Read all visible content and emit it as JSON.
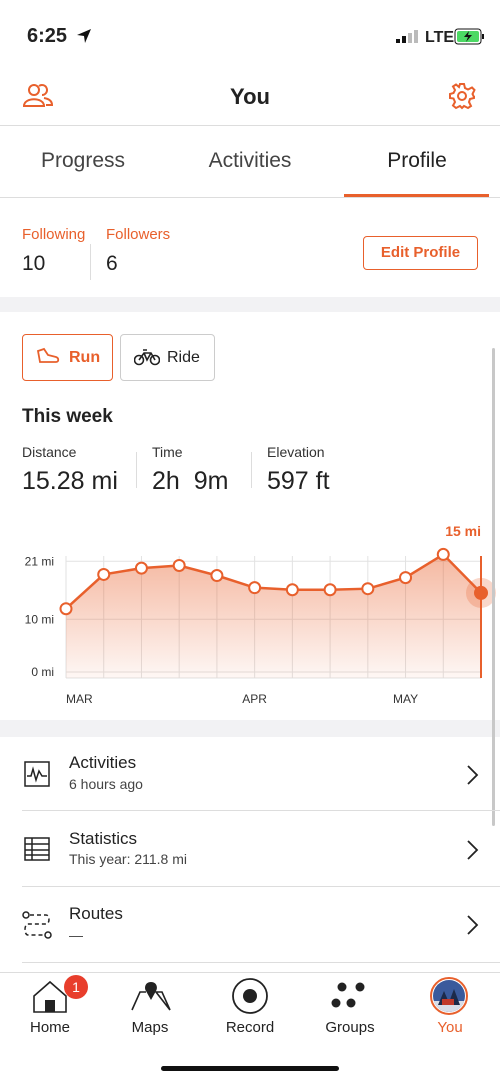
{
  "status_bar": {
    "time": "6:25",
    "network": "LTE"
  },
  "header": {
    "title": "You"
  },
  "tabs": [
    "Progress",
    "Activities",
    "Profile"
  ],
  "social": {
    "following_label": "Following",
    "following": 10,
    "followers_label": "Followers",
    "followers": 6,
    "edit_button": "Edit Profile"
  },
  "sport_toggle": [
    "Run",
    "Ride"
  ],
  "weekly": {
    "title": "This week",
    "stats": [
      {
        "label": "Distance",
        "value": "15.28 mi"
      },
      {
        "label": "Time",
        "value": "2h  9m"
      },
      {
        "label": "Elevation",
        "value": "597 ft"
      }
    ]
  },
  "chart_data": {
    "type": "line",
    "categories": [
      "MAR",
      null,
      null,
      null,
      null,
      "APR",
      null,
      null,
      null,
      "MAY",
      null,
      null
    ],
    "values": [
      12,
      18.5,
      19.7,
      20.2,
      18.3,
      16,
      15.6,
      15.6,
      15.8,
      17.9,
      22.3,
      15
    ],
    "value_labels": [
      null,
      null,
      null,
      null,
      null,
      null,
      null,
      null,
      null,
      null,
      null,
      "15 mi"
    ],
    "color": "#e8602c",
    "ylim": [
      0,
      22
    ],
    "yticks": [
      {
        "value": 0,
        "label": "0 mi"
      },
      {
        "value": 10,
        "label": "10 mi"
      },
      {
        "value": 21,
        "label": "21 mi"
      }
    ],
    "grid": true
  },
  "menu": [
    {
      "title": "Activities",
      "subtitle": "6 hours ago"
    },
    {
      "title": "Statistics",
      "subtitle": "This year: 211.8 mi"
    },
    {
      "title": "Routes",
      "subtitle": "—"
    }
  ],
  "tab_bar": {
    "items": [
      "Home",
      "Maps",
      "Record",
      "Groups",
      "You"
    ],
    "home_badge": 1
  }
}
